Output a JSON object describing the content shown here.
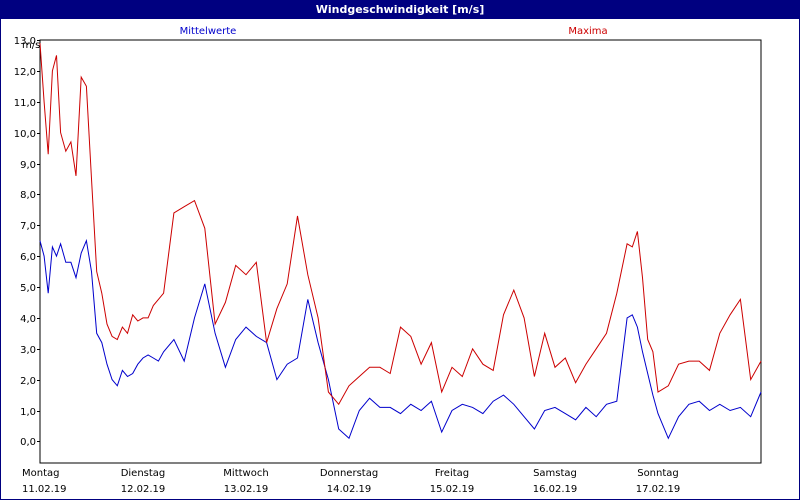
{
  "chart_data": {
    "type": "line",
    "title": "Windgeschwindigkeit [m/s]",
    "ylabel": "m/s",
    "ylim": [
      -0.7,
      13.0
    ],
    "yticks": [
      "13,0",
      "12,0",
      "11,0",
      "10,0",
      "9,0",
      "8,0",
      "7,0",
      "6,0",
      "5,0",
      "4,0",
      "3,0",
      "2,0",
      "1,0",
      "0,0"
    ],
    "ytick_values": [
      13,
      12,
      11,
      10,
      9,
      8,
      7,
      6,
      5,
      4,
      3,
      2,
      1,
      0
    ],
    "x_range_days": [
      0,
      7
    ],
    "grid": true,
    "day_labels": [
      {
        "day": "Montag",
        "date": "11.02.19"
      },
      {
        "day": "Dienstag",
        "date": "12.02.19"
      },
      {
        "day": "Mittwoch",
        "date": "13.02.19"
      },
      {
        "day": "Donnerstag",
        "date": "14.02.19"
      },
      {
        "day": "Freitag",
        "date": "15.02.19"
      },
      {
        "day": "Samstag",
        "date": "16.02.19"
      },
      {
        "day": "Sonntag",
        "date": "17.02.19"
      }
    ],
    "series": [
      {
        "name": "Mittelwerte",
        "color": "#0000cc",
        "x": [
          0,
          0.04,
          0.08,
          0.12,
          0.16,
          0.2,
          0.25,
          0.3,
          0.35,
          0.4,
          0.45,
          0.5,
          0.55,
          0.6,
          0.65,
          0.7,
          0.75,
          0.8,
          0.85,
          0.9,
          0.95,
          1.0,
          1.05,
          1.1,
          1.15,
          1.2,
          1.3,
          1.4,
          1.5,
          1.6,
          1.7,
          1.8,
          1.9,
          2.0,
          2.1,
          2.2,
          2.3,
          2.4,
          2.5,
          2.6,
          2.7,
          2.8,
          2.9,
          3.0,
          3.1,
          3.2,
          3.3,
          3.4,
          3.5,
          3.6,
          3.7,
          3.8,
          3.9,
          4.0,
          4.1,
          4.2,
          4.3,
          4.4,
          4.5,
          4.6,
          4.7,
          4.8,
          4.9,
          5.0,
          5.1,
          5.2,
          5.3,
          5.4,
          5.5,
          5.6,
          5.7,
          5.75,
          5.8,
          5.85,
          5.9,
          5.95,
          6.0,
          6.1,
          6.2,
          6.3,
          6.4,
          6.5,
          6.6,
          6.7,
          6.8,
          6.9,
          7.0
        ],
        "values": [
          6.5,
          6.0,
          4.8,
          6.3,
          6.0,
          6.4,
          5.8,
          5.8,
          5.3,
          6.1,
          6.5,
          5.5,
          3.5,
          3.2,
          2.5,
          2.0,
          1.8,
          2.3,
          2.1,
          2.2,
          2.5,
          2.7,
          2.8,
          2.7,
          2.6,
          2.9,
          3.3,
          2.6,
          4.0,
          5.1,
          3.5,
          2.4,
          3.3,
          3.7,
          3.4,
          3.2,
          2.0,
          2.5,
          2.7,
          4.6,
          3.2,
          2.0,
          0.4,
          0.1,
          1.0,
          1.4,
          1.1,
          1.1,
          0.9,
          1.2,
          1.0,
          1.3,
          0.3,
          1.0,
          1.2,
          1.1,
          0.9,
          1.3,
          1.5,
          1.2,
          0.8,
          0.4,
          1.0,
          1.1,
          0.9,
          0.7,
          1.1,
          0.8,
          1.2,
          1.3,
          4.0,
          4.1,
          3.7,
          2.9,
          2.2,
          1.5,
          0.9,
          0.1,
          0.8,
          1.2,
          1.3,
          1.0,
          1.2,
          1.0,
          1.1,
          0.8,
          1.6
        ]
      },
      {
        "name": "Maxima",
        "color": "#cc0000",
        "x": [
          0,
          0.04,
          0.08,
          0.12,
          0.16,
          0.2,
          0.25,
          0.3,
          0.35,
          0.4,
          0.45,
          0.5,
          0.55,
          0.6,
          0.65,
          0.7,
          0.75,
          0.8,
          0.85,
          0.9,
          0.95,
          1.0,
          1.05,
          1.1,
          1.15,
          1.2,
          1.3,
          1.4,
          1.5,
          1.6,
          1.7,
          1.8,
          1.9,
          2.0,
          2.1,
          2.2,
          2.3,
          2.4,
          2.5,
          2.6,
          2.7,
          2.8,
          2.9,
          3.0,
          3.1,
          3.2,
          3.3,
          3.4,
          3.5,
          3.6,
          3.7,
          3.8,
          3.9,
          4.0,
          4.1,
          4.2,
          4.3,
          4.4,
          4.5,
          4.6,
          4.7,
          4.8,
          4.9,
          5.0,
          5.1,
          5.2,
          5.3,
          5.4,
          5.5,
          5.6,
          5.7,
          5.75,
          5.8,
          5.85,
          5.9,
          5.95,
          6.0,
          6.1,
          6.2,
          6.3,
          6.4,
          6.5,
          6.6,
          6.7,
          6.8,
          6.9,
          7.0
        ],
        "values": [
          12.9,
          11.0,
          9.3,
          12.0,
          12.5,
          10.0,
          9.4,
          9.7,
          8.6,
          11.8,
          11.5,
          8.5,
          5.5,
          4.8,
          3.8,
          3.4,
          3.3,
          3.7,
          3.5,
          4.1,
          3.9,
          4.0,
          4.0,
          4.4,
          4.6,
          4.8,
          7.4,
          7.6,
          7.8,
          6.9,
          3.8,
          4.5,
          5.7,
          5.4,
          5.8,
          3.2,
          4.3,
          5.1,
          7.3,
          5.4,
          4.0,
          1.6,
          1.2,
          1.8,
          2.1,
          2.4,
          2.4,
          2.2,
          3.7,
          3.4,
          2.5,
          3.2,
          1.6,
          2.4,
          2.1,
          3.0,
          2.5,
          2.3,
          4.1,
          4.9,
          4.0,
          2.1,
          3.5,
          2.4,
          2.7,
          1.9,
          2.5,
          3.0,
          3.5,
          4.8,
          6.4,
          6.3,
          6.8,
          5.3,
          3.3,
          2.9,
          1.6,
          1.8,
          2.5,
          2.6,
          2.6,
          2.3,
          3.5,
          4.1,
          4.6,
          2.0,
          2.6
        ]
      }
    ]
  }
}
